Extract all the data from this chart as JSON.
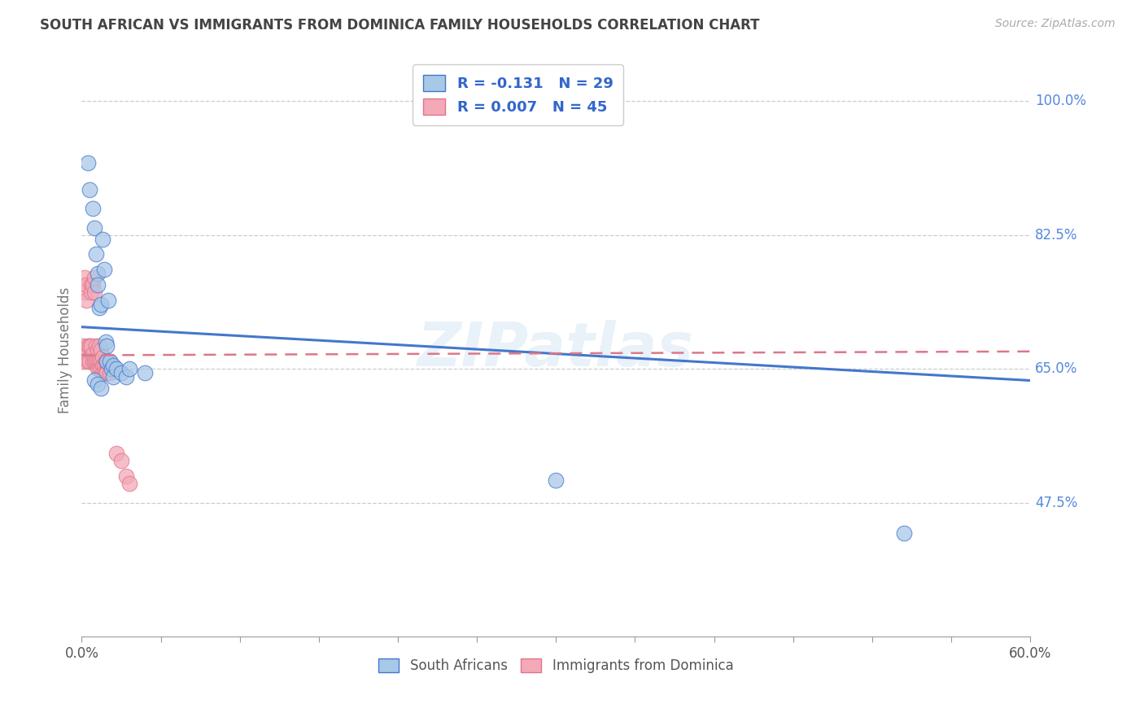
{
  "title": "SOUTH AFRICAN VS IMMIGRANTS FROM DOMINICA FAMILY HOUSEHOLDS CORRELATION CHART",
  "source": "Source: ZipAtlas.com",
  "ylabel": "Family Households",
  "ytick_labels": [
    "100.0%",
    "82.5%",
    "65.0%",
    "47.5%"
  ],
  "ytick_values": [
    1.0,
    0.825,
    0.65,
    0.475
  ],
  "xmin": 0.0,
  "xmax": 0.6,
  "ymin": 0.3,
  "ymax": 1.05,
  "legend_blue_r": "R = -0.131",
  "legend_blue_n": "N = 29",
  "legend_pink_r": "R = 0.007",
  "legend_pink_n": "N = 45",
  "blue_color": "#a8c8e8",
  "pink_color": "#f4a8b8",
  "blue_line_color": "#4477cc",
  "pink_line_color": "#dd7788",
  "watermark": "ZIPatlas",
  "blue_trend_x0": 0.0,
  "blue_trend_y0": 0.705,
  "blue_trend_x1": 0.6,
  "blue_trend_y1": 0.635,
  "pink_trend_x0": 0.0,
  "pink_trend_y0": 0.668,
  "pink_trend_x1": 0.6,
  "pink_trend_y1": 0.673,
  "south_african_x": [
    0.004,
    0.005,
    0.007,
    0.008,
    0.009,
    0.01,
    0.01,
    0.011,
    0.012,
    0.013,
    0.014,
    0.015,
    0.016,
    0.016,
    0.017,
    0.018,
    0.019,
    0.02,
    0.02,
    0.022,
    0.025,
    0.028,
    0.03,
    0.04,
    0.008,
    0.01,
    0.012,
    0.3,
    0.52
  ],
  "south_african_y": [
    0.92,
    0.885,
    0.86,
    0.835,
    0.8,
    0.775,
    0.76,
    0.73,
    0.735,
    0.82,
    0.78,
    0.685,
    0.68,
    0.66,
    0.74,
    0.66,
    0.65,
    0.655,
    0.64,
    0.65,
    0.645,
    0.64,
    0.65,
    0.645,
    0.635,
    0.63,
    0.625,
    0.505,
    0.435
  ],
  "dominica_x": [
    0.001,
    0.001,
    0.002,
    0.002,
    0.003,
    0.003,
    0.004,
    0.004,
    0.005,
    0.005,
    0.006,
    0.006,
    0.006,
    0.007,
    0.007,
    0.007,
    0.008,
    0.008,
    0.008,
    0.009,
    0.009,
    0.01,
    0.01,
    0.01,
    0.011,
    0.011,
    0.011,
    0.012,
    0.012,
    0.012,
    0.013,
    0.013,
    0.013,
    0.014,
    0.014,
    0.015,
    0.015,
    0.016,
    0.016,
    0.018,
    0.018,
    0.022,
    0.025,
    0.028,
    0.03
  ],
  "dominica_y": [
    0.68,
    0.66,
    0.77,
    0.75,
    0.76,
    0.74,
    0.68,
    0.66,
    0.68,
    0.66,
    0.76,
    0.75,
    0.68,
    0.76,
    0.67,
    0.66,
    0.77,
    0.75,
    0.66,
    0.68,
    0.66,
    0.675,
    0.66,
    0.65,
    0.68,
    0.66,
    0.65,
    0.675,
    0.66,
    0.65,
    0.665,
    0.655,
    0.645,
    0.655,
    0.645,
    0.66,
    0.645,
    0.66,
    0.645,
    0.66,
    0.645,
    0.54,
    0.53,
    0.51,
    0.5
  ]
}
